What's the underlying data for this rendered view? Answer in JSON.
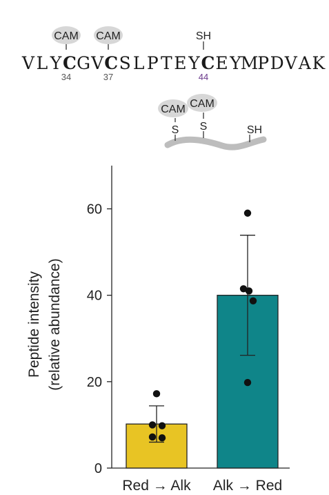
{
  "peptide": {
    "sequence": "VLYCGVCSLPTEYCEYMPDVAK",
    "modifications": [
      {
        "residue_index": 3,
        "label": "CAM",
        "position": "34",
        "color": "#555555"
      },
      {
        "residue_index": 6,
        "label": "CAM",
        "position": "37",
        "color": "#555555"
      },
      {
        "residue_index": 13,
        "label": "SH",
        "position": "44",
        "color": "#6b3a8c"
      }
    ]
  },
  "schematic": {
    "labels": [
      "CAM",
      "CAM",
      "SH"
    ],
    "sulfur_labels": [
      "S",
      "S"
    ]
  },
  "chart_data": {
    "type": "bar",
    "categories": [
      "Red → Alk",
      "Alk → Red"
    ],
    "values": [
      10.2,
      40.0
    ],
    "error": [
      4.2,
      13.9
    ],
    "points": [
      [
        17.2,
        10.0,
        9.8,
        7.2,
        7.0
      ],
      [
        59.0,
        41.5,
        41.0,
        38.7,
        19.8
      ]
    ],
    "colors": [
      "#e8c424",
      "#0f8589"
    ],
    "ylabel_line1": "Peptide intensity",
    "ylabel_line2": "(relative abundance)",
    "yticks": [
      0,
      20,
      40,
      60
    ],
    "ylim": [
      0,
      70
    ]
  }
}
